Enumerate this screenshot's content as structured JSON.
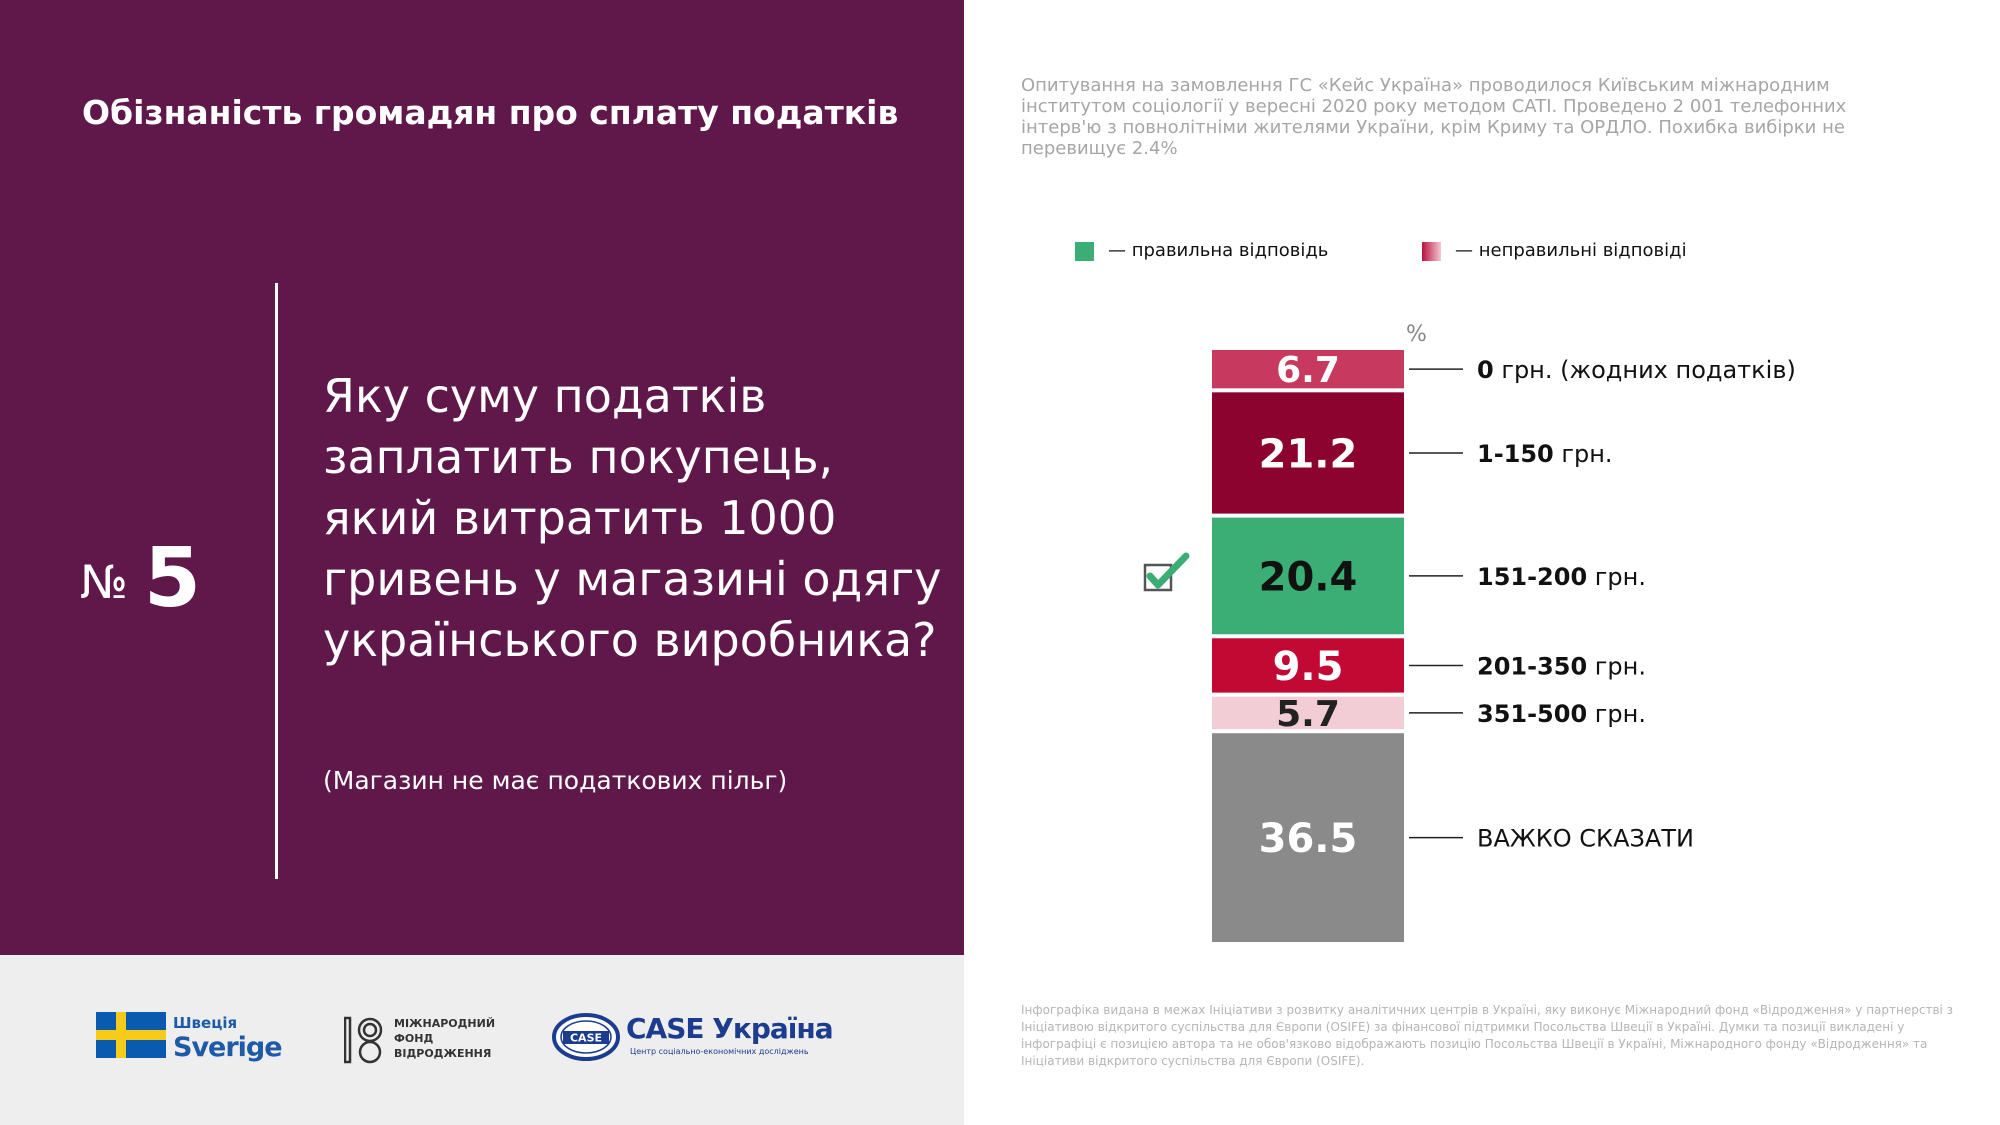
{
  "title": "Обізнаність громадян про сплату податків",
  "question": {
    "number_sign": "№",
    "number": "5",
    "text": "Яку суму податків заплатить покупець, який витратить 1000 гривень у магазині одягу українського виробника?",
    "note": "(Магазин не має податкових пільг)"
  },
  "survey_note": "Опитування на замовлення ГС «Кейс Україна» проводилося Київським міжнародним інститутом соціології у вересні 2020 року методом CATI. Проведено 2 001 телефонних інтерв'ю з повнолітніми жителями України, крім Криму та ОРДЛО. Похибка вибірки не перевищує 2.4%",
  "legend": {
    "correct": "— правильна відповідь",
    "wrong": "— неправильні відповіді"
  },
  "colors": {
    "panel": "#5f1849",
    "correct": "#3aae74",
    "wrong_gradient": [
      "#b8123c",
      "#f3c9d4"
    ]
  },
  "chart_data": {
    "type": "bar",
    "stacked": true,
    "unit": "%",
    "categories": [
      {
        "bold": "0",
        "rest": " грн. (жодних податків)"
      },
      {
        "bold": "1-150",
        "rest": " грн."
      },
      {
        "bold": "151-200",
        "rest": " грн."
      },
      {
        "bold": "201-350",
        "rest": " грн."
      },
      {
        "bold": "351-500",
        "rest": " грн."
      },
      {
        "bold": "",
        "rest": "ВАЖКО СКАЗАТИ"
      }
    ],
    "values": [
      6.7,
      21.2,
      20.4,
      9.5,
      5.7,
      36.5
    ],
    "value_labels": [
      "6.7",
      "21.2",
      "20.4",
      "9.5",
      "5.7",
      "36.5"
    ],
    "segment_colors": [
      "#c8395f",
      "#8c0330",
      "#3aae74",
      "#c10934",
      "#f2cdd6",
      "#8a8a8a"
    ],
    "label_colors": [
      "#ffffff",
      "#ffffff",
      "#111111",
      "#ffffff",
      "#222222",
      "#ffffff"
    ],
    "correct_index": 2
  },
  "icons": {
    "correct_marker": "checkbox-check-icon"
  },
  "logos": {
    "sweden": {
      "line1": "Швеція",
      "line2": "Sverige"
    },
    "irf": {
      "line1": "МІЖНАРОДНИЙ",
      "line2": "ФОНД",
      "line3": "ВІДРОДЖЕННЯ"
    },
    "case": {
      "mark": "CASE",
      "name": "CASE Україна",
      "sub": "Центр соціально-економічних досліджень"
    }
  },
  "disclaimer": "Інфографіка видана в межах Ініціативи з розвитку аналітичних центрів в Україні, яку виконує Міжнародний фонд «Відродження» у партнерстві з Ініціативою відкритого суспільства для Європи (OSIFE) за фінансової підтримки Посольства Швеції в Україні. Думки та позиції викладені у інфографіці є позицією автора та не обов'язково відображають позицію Посольства Швеції в Україні, Міжнародного фонду «Відродження» та Ініціативи відкритого суспільства для Європи (OSIFE)."
}
